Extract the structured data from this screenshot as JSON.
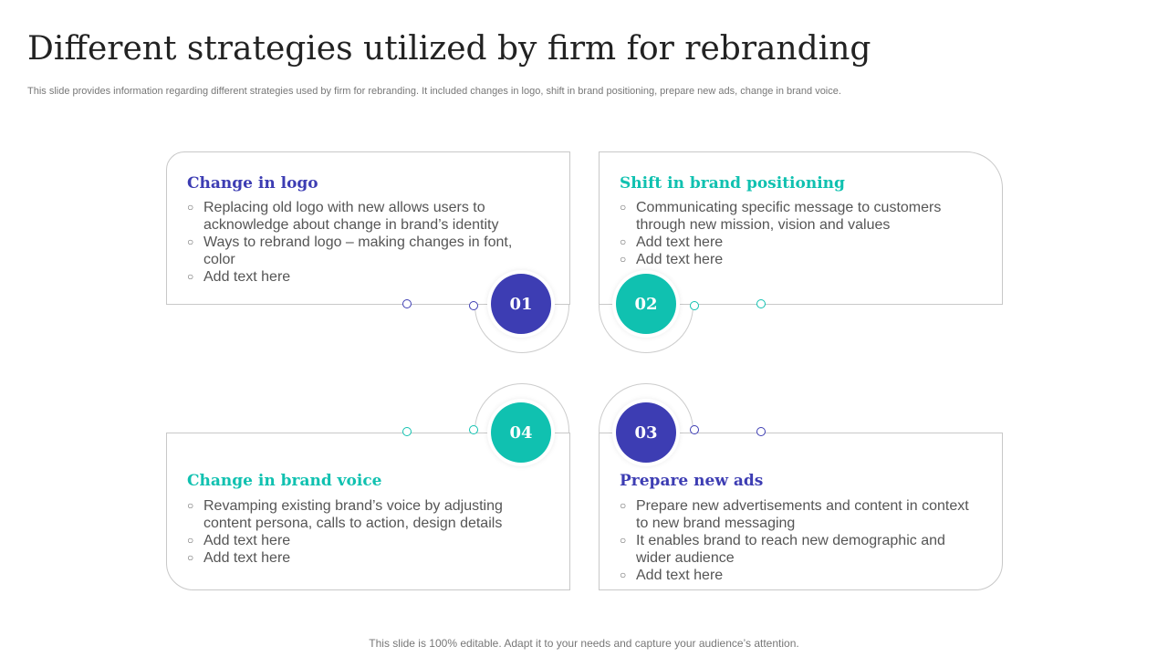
{
  "title": "Different strategies utilized by firm for rebranding",
  "subtitle": "This slide provides information regarding different strategies used by firm for rebranding. It included changes in logo, shift in brand positioning, prepare new ads, change in brand voice.",
  "footer": "This slide is 100% editable. Adapt it to your needs and capture your audience’s attention.",
  "colors": {
    "purple": "#3d3db3",
    "teal": "#10c1b0"
  },
  "strategies": [
    {
      "number": "01",
      "heading": "Change in logo",
      "points": [
        "Replacing old logo with new allows users to acknowledge about change in brand’s identity",
        "Ways to rebrand logo – making changes in font, color",
        "Add text here"
      ]
    },
    {
      "number": "02",
      "heading": "Shift in brand positioning",
      "points": [
        "Communicating specific message to customers through new mission, vision and values",
        "Add text here",
        "Add text here"
      ]
    },
    {
      "number": "03",
      "heading": "Prepare new ads",
      "points": [
        "Prepare new advertisements and content in context to new brand messaging",
        "It enables brand to reach new demographic and wider audience",
        "Add text here"
      ]
    },
    {
      "number": "04",
      "heading": "Change in brand voice",
      "points": [
        "Revamping existing brand’s voice by adjusting content persona, calls to action, design details",
        "Add text here",
        "Add text here"
      ]
    }
  ]
}
